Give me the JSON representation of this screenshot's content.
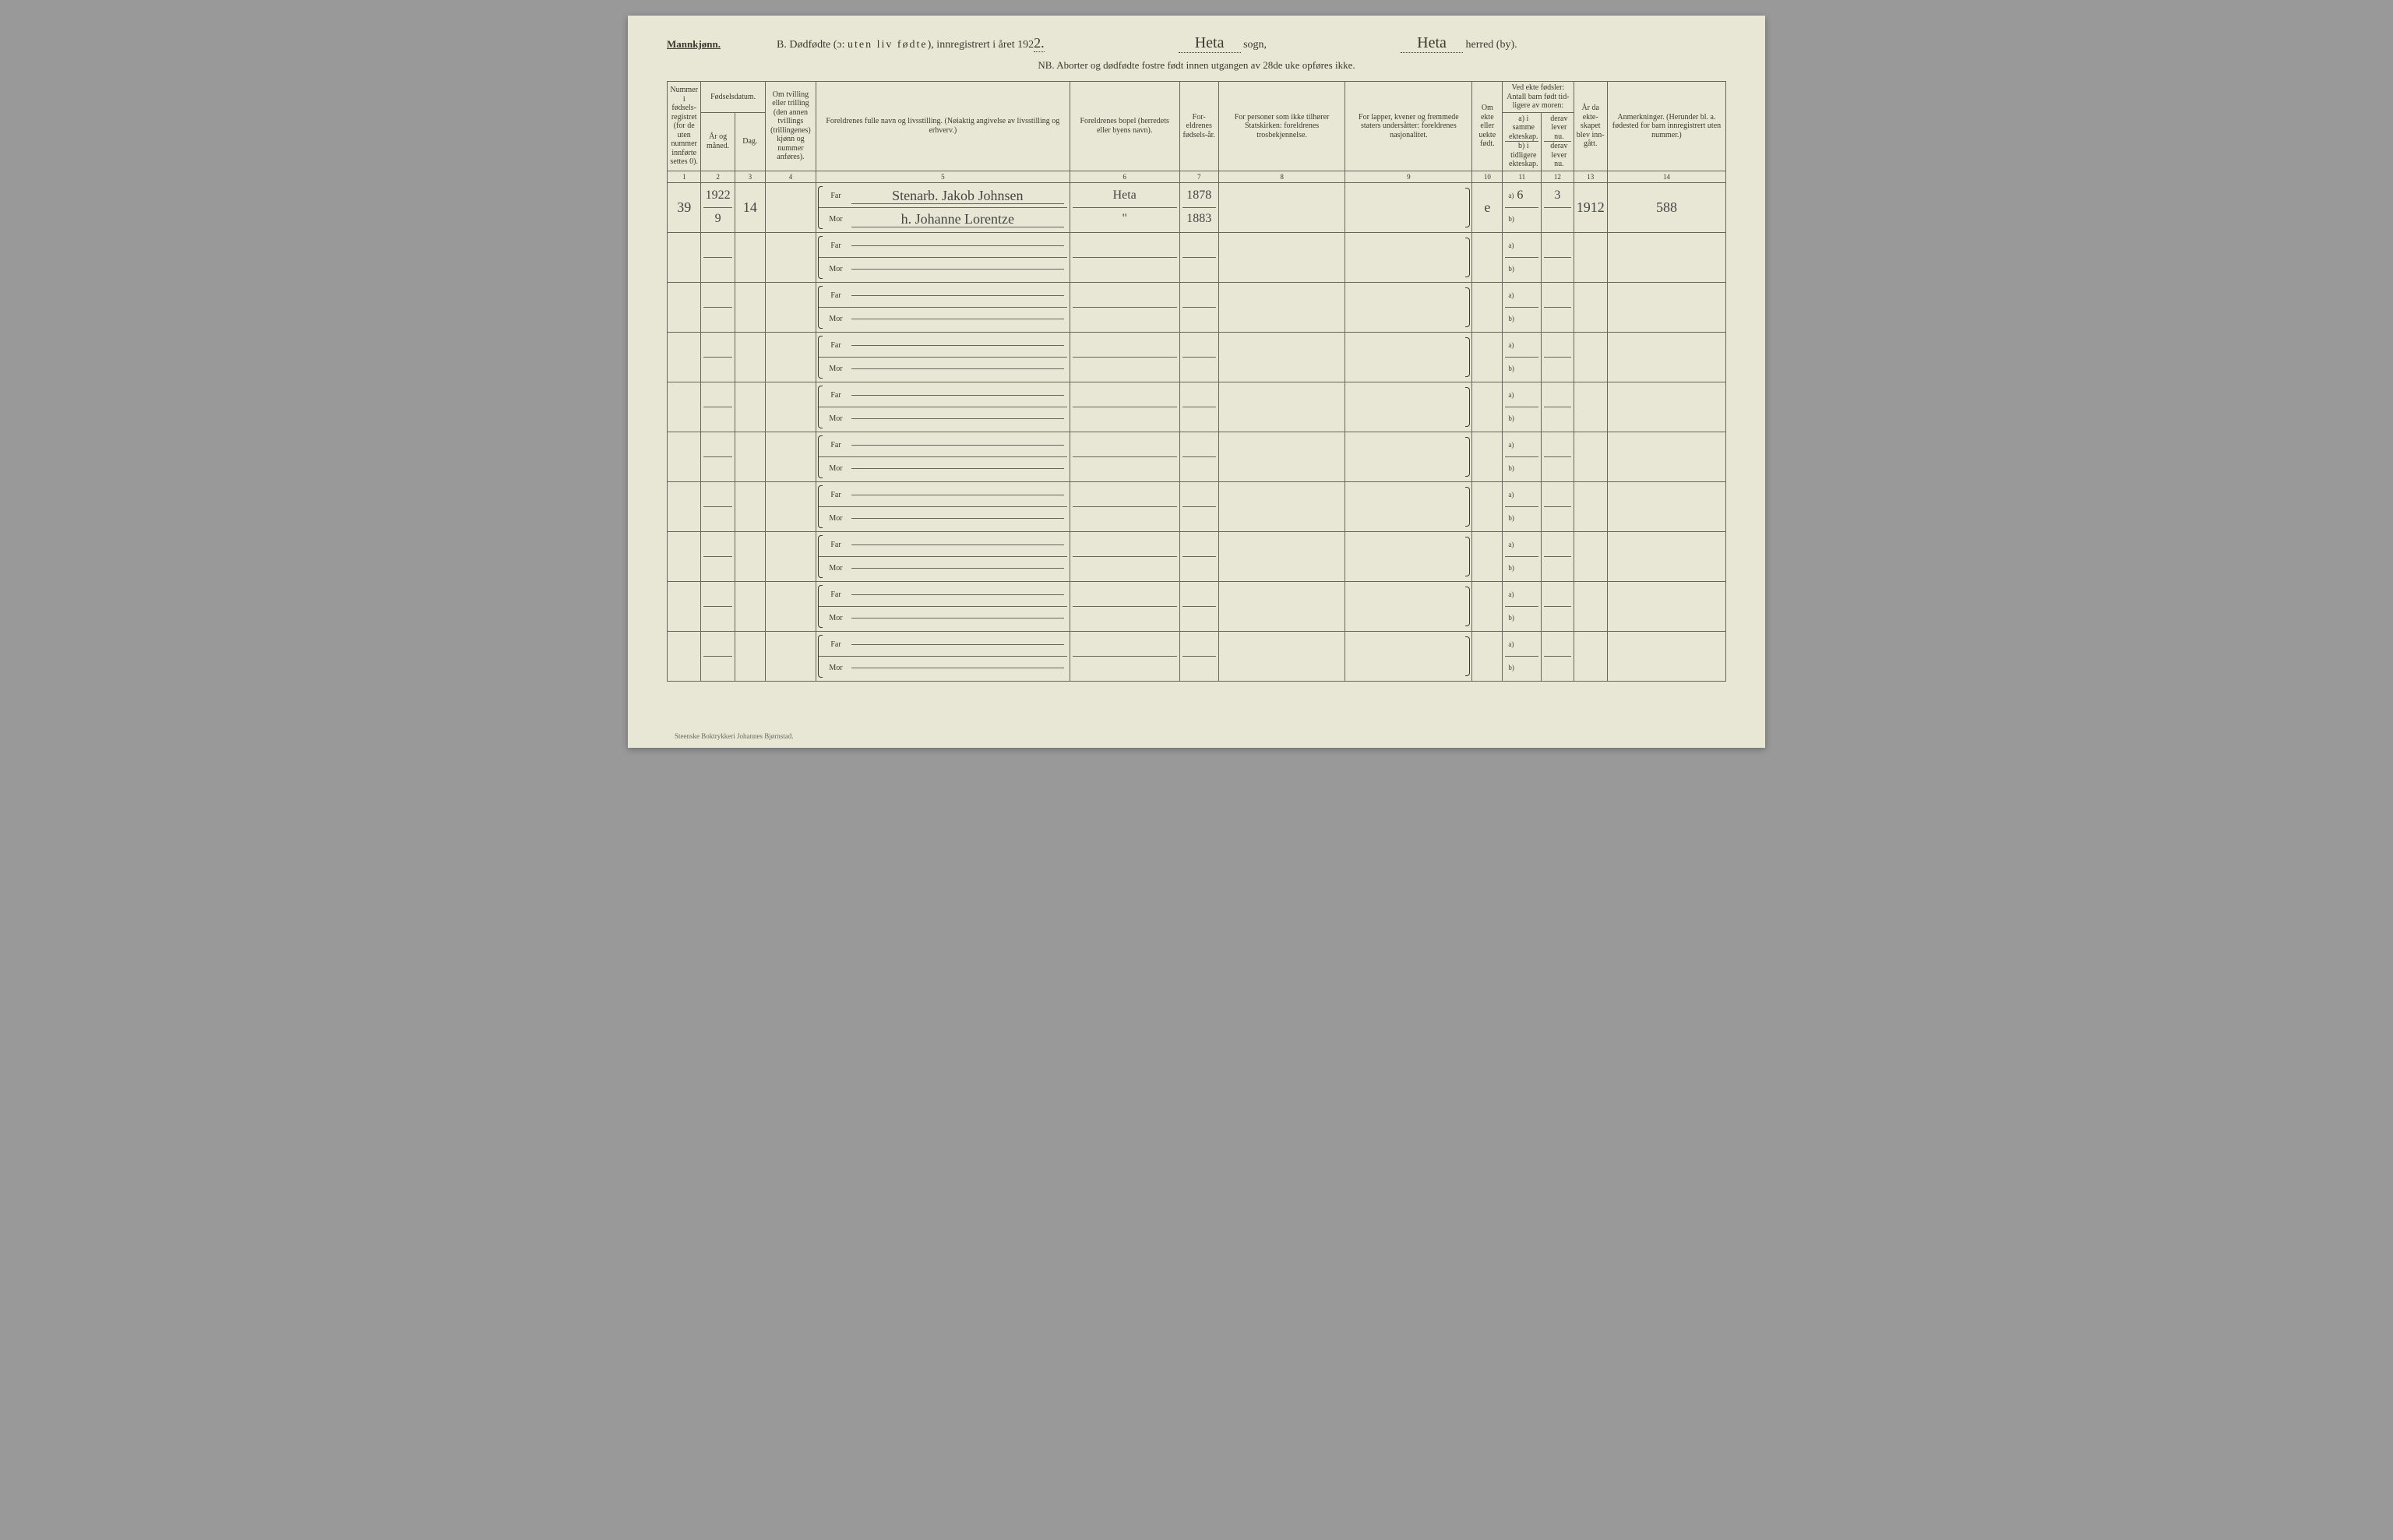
{
  "header": {
    "gender": "Mannkjønn.",
    "title_prefix": "B.  Dødfødte (ɔ: ",
    "title_spaced": "uten liv fødte",
    "title_suffix": "), innregistrert i året 192",
    "year_suffix": "2.",
    "sogn_hw": "Heta",
    "sogn_label": "sogn,",
    "herred_hw": "Heta",
    "herred_label": "herred (by).",
    "nb": "NB. Aborter og dødfødte fostre født innen utgangen av 28de uke opføres ikke."
  },
  "columns": {
    "c1": "Nummer i fødsels-registret (for de uten nummer innførte settes 0).",
    "c2_top": "Fødselsdatum.",
    "c2": "År og måned.",
    "c3": "Dag.",
    "c4": "Om tvilling eller trilling (den annen tvillings (trillingenes) kjønn og nummer anføres).",
    "c5": "Foreldrenes fulle navn og livsstilling. (Nøiaktig angivelse av livsstilling og erhverv.)",
    "c6": "Foreldrenes bopel (herredets eller byens navn).",
    "c7": "For-eldrenes fødsels-år.",
    "c8": "For personer som ikke tilhører Statskirken: foreldrenes trosbekjennelse.",
    "c9": "For lapper, kvener og fremmede staters undersåtter: foreldrenes nasjonalitet.",
    "c10": "Om ekte eller uekte født.",
    "c11_top": "Ved ekte fødsler: Antall barn født tid-ligere av moren:",
    "c11a": "a) i samme ekteskap.",
    "c11b": "b) i tidligere ekteskap.",
    "c12a": "derav lever nu.",
    "c12b": "derav lever nu.",
    "c13": "År da ekte-skapet blev inn-gått.",
    "c14": "Anmerkninger. (Herunder bl. a. fødested for barn innregistrert uten nummer.)"
  },
  "colnums": [
    "1",
    "2",
    "3",
    "4",
    "5",
    "6",
    "7",
    "8",
    "9",
    "10",
    "11",
    "12",
    "13",
    "14"
  ],
  "far_label": "Far",
  "mor_label": "Mor",
  "ab_a": "a)",
  "ab_b": "b)",
  "rows": [
    {
      "num": "39",
      "year_month": "1922 9",
      "day": "14",
      "twin": "",
      "far": "Stenarb. Jakob Johnsen",
      "mor": "h. Johanne Lorentze",
      "bopel_far": "Heta",
      "bopel_mor": "\"",
      "fy_far": "1878",
      "fy_mor": "1883",
      "c8": "",
      "c9": "",
      "ekte": "e",
      "c11a": "6",
      "c11b": "",
      "c12a": "3",
      "c12b": "",
      "c13": "1912",
      "c14": "588"
    },
    {
      "num": "",
      "year_month": "",
      "day": "",
      "twin": "",
      "far": "",
      "mor": "",
      "bopel_far": "",
      "bopel_mor": "",
      "fy_far": "",
      "fy_mor": "",
      "c8": "",
      "c9": "",
      "ekte": "",
      "c11a": "",
      "c11b": "",
      "c12a": "",
      "c12b": "",
      "c13": "",
      "c14": ""
    },
    {
      "num": "",
      "year_month": "",
      "day": "",
      "twin": "",
      "far": "",
      "mor": "",
      "bopel_far": "",
      "bopel_mor": "",
      "fy_far": "",
      "fy_mor": "",
      "c8": "",
      "c9": "",
      "ekte": "",
      "c11a": "",
      "c11b": "",
      "c12a": "",
      "c12b": "",
      "c13": "",
      "c14": ""
    },
    {
      "num": "",
      "year_month": "",
      "day": "",
      "twin": "",
      "far": "",
      "mor": "",
      "bopel_far": "",
      "bopel_mor": "",
      "fy_far": "",
      "fy_mor": "",
      "c8": "",
      "c9": "",
      "ekte": "",
      "c11a": "",
      "c11b": "",
      "c12a": "",
      "c12b": "",
      "c13": "",
      "c14": ""
    },
    {
      "num": "",
      "year_month": "",
      "day": "",
      "twin": "",
      "far": "",
      "mor": "",
      "bopel_far": "",
      "bopel_mor": "",
      "fy_far": "",
      "fy_mor": "",
      "c8": "",
      "c9": "",
      "ekte": "",
      "c11a": "",
      "c11b": "",
      "c12a": "",
      "c12b": "",
      "c13": "",
      "c14": ""
    },
    {
      "num": "",
      "year_month": "",
      "day": "",
      "twin": "",
      "far": "",
      "mor": "",
      "bopel_far": "",
      "bopel_mor": "",
      "fy_far": "",
      "fy_mor": "",
      "c8": "",
      "c9": "",
      "ekte": "",
      "c11a": "",
      "c11b": "",
      "c12a": "",
      "c12b": "",
      "c13": "",
      "c14": ""
    },
    {
      "num": "",
      "year_month": "",
      "day": "",
      "twin": "",
      "far": "",
      "mor": "",
      "bopel_far": "",
      "bopel_mor": "",
      "fy_far": "",
      "fy_mor": "",
      "c8": "",
      "c9": "",
      "ekte": "",
      "c11a": "",
      "c11b": "",
      "c12a": "",
      "c12b": "",
      "c13": "",
      "c14": ""
    },
    {
      "num": "",
      "year_month": "",
      "day": "",
      "twin": "",
      "far": "",
      "mor": "",
      "bopel_far": "",
      "bopel_mor": "",
      "fy_far": "",
      "fy_mor": "",
      "c8": "",
      "c9": "",
      "ekte": "",
      "c11a": "",
      "c11b": "",
      "c12a": "",
      "c12b": "",
      "c13": "",
      "c14": ""
    },
    {
      "num": "",
      "year_month": "",
      "day": "",
      "twin": "",
      "far": "",
      "mor": "",
      "bopel_far": "",
      "bopel_mor": "",
      "fy_far": "",
      "fy_mor": "",
      "c8": "",
      "c9": "",
      "ekte": "",
      "c11a": "",
      "c11b": "",
      "c12a": "",
      "c12b": "",
      "c13": "",
      "c14": ""
    },
    {
      "num": "",
      "year_month": "",
      "day": "",
      "twin": "",
      "far": "",
      "mor": "",
      "bopel_far": "",
      "bopel_mor": "",
      "fy_far": "",
      "fy_mor": "",
      "c8": "",
      "c9": "",
      "ekte": "",
      "c11a": "",
      "c11b": "",
      "c12a": "",
      "c12b": "",
      "c13": "",
      "c14": ""
    }
  ],
  "footer": "Steenske Boktrykkeri Johannes Bjørnstad."
}
